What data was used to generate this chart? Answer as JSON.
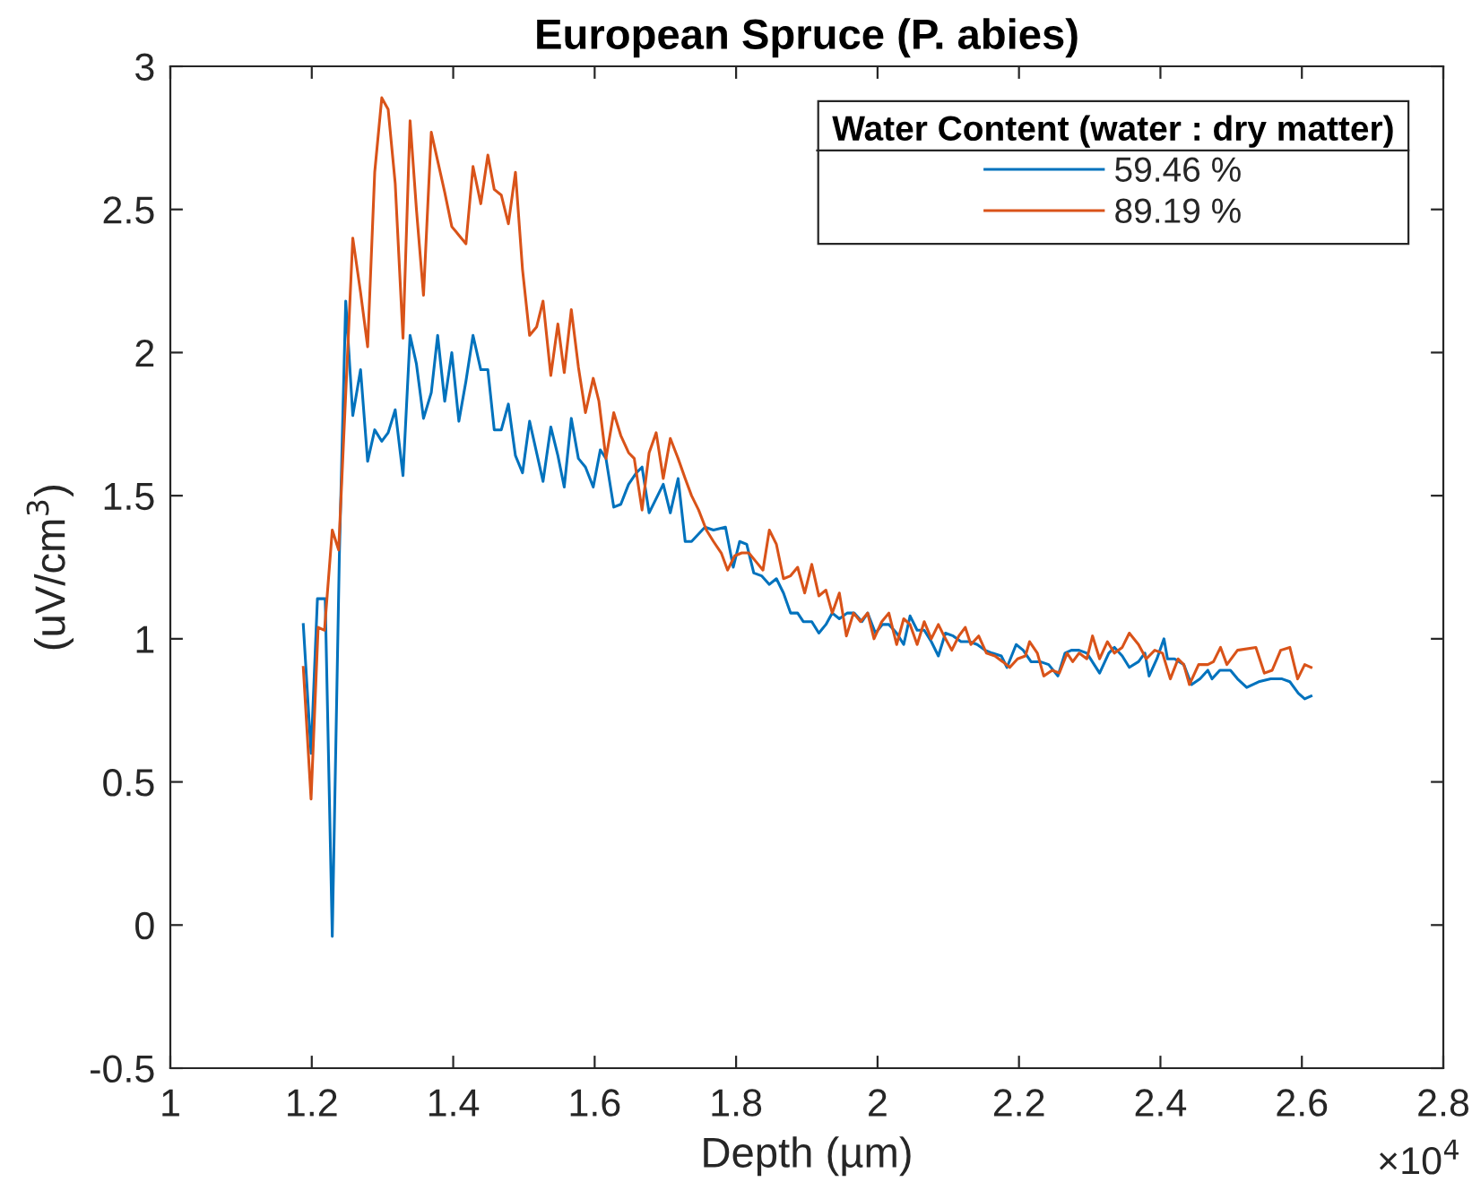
{
  "chart_data": {
    "type": "line",
    "title": "European Spruce (P. abies)",
    "xlabel": "Depth (µm)",
    "ylabel": "(uV/cm$^{3}$)",
    "legend_title": "Water Content (water : dry matter)",
    "legend": "top right",
    "line_style": "solid",
    "annotations": [
      "×10$^{4}$"
    ],
    "xlim": [
      1,
      2.8
    ],
    "xticks": [
      1,
      1.2,
      1.4,
      1.6,
      1.8,
      2,
      2.2,
      2.4,
      2.6,
      2.8
    ],
    "ylim": [
      -0.5,
      3
    ],
    "yticks": [
      -0.5,
      0,
      0.5,
      1,
      1.5,
      2,
      2.5,
      3
    ],
    "series": [
      {
        "name": "59.46 %",
        "color": "#0072bd",
        "x": [
          1.188,
          1.199,
          1.208,
          1.219,
          1.229,
          1.239,
          1.248,
          1.258,
          1.269,
          1.279,
          1.289,
          1.299,
          1.308,
          1.318,
          1.329,
          1.339,
          1.348,
          1.358,
          1.369,
          1.378,
          1.388,
          1.398,
          1.408,
          1.418,
          1.428,
          1.439,
          1.449,
          1.458,
          1.468,
          1.478,
          1.488,
          1.498,
          1.508,
          1.527,
          1.538,
          1.548,
          1.557,
          1.567,
          1.577,
          1.587,
          1.598,
          1.608,
          1.616,
          1.627,
          1.637,
          1.648,
          1.659,
          1.667,
          1.677,
          1.697,
          1.707,
          1.718,
          1.728,
          1.737,
          1.756,
          1.768,
          1.785,
          1.796,
          1.805,
          1.815,
          1.825,
          1.836,
          1.847,
          1.857,
          1.867,
          1.877,
          1.887,
          1.895,
          1.907,
          1.917,
          1.927,
          1.936,
          1.946,
          1.957,
          1.967,
          1.978,
          1.986,
          1.997,
          2.007,
          2.016,
          2.027,
          2.037,
          2.046,
          2.056,
          2.066,
          2.076,
          2.086,
          2.096,
          2.107,
          2.118,
          2.13,
          2.141,
          2.152,
          2.162,
          2.175,
          2.183,
          2.196,
          2.206,
          2.217,
          2.23,
          2.242,
          2.255,
          2.265,
          2.274,
          2.285,
          2.296,
          2.314,
          2.327,
          2.335,
          2.346,
          2.356,
          2.369,
          2.378,
          2.384,
          2.395,
          2.405,
          2.41,
          2.42,
          2.433,
          2.444,
          2.456,
          2.467,
          2.473,
          2.484,
          2.499,
          2.509,
          2.522,
          2.539,
          2.556,
          2.572,
          2.583,
          2.595,
          2.604,
          2.613
        ],
        "values": [
          1.05,
          0.6,
          1.14,
          1.14,
          -0.04,
          1.29,
          2.18,
          1.78,
          1.94,
          1.62,
          1.73,
          1.69,
          1.72,
          1.8,
          1.57,
          2.06,
          1.96,
          1.77,
          1.86,
          2.06,
          1.83,
          2.0,
          1.76,
          1.9,
          2.06,
          1.94,
          1.94,
          1.73,
          1.73,
          1.82,
          1.64,
          1.58,
          1.76,
          1.55,
          1.74,
          1.64,
          1.53,
          1.77,
          1.63,
          1.6,
          1.53,
          1.66,
          1.63,
          1.46,
          1.47,
          1.54,
          1.58,
          1.6,
          1.44,
          1.54,
          1.44,
          1.56,
          1.34,
          1.34,
          1.39,
          1.38,
          1.39,
          1.25,
          1.34,
          1.33,
          1.23,
          1.22,
          1.19,
          1.21,
          1.16,
          1.09,
          1.09,
          1.06,
          1.06,
          1.02,
          1.05,
          1.09,
          1.07,
          1.09,
          1.09,
          1.06,
          1.09,
          1.02,
          1.05,
          1.05,
          1.02,
          0.98,
          1.08,
          1.03,
          1.03,
          0.99,
          0.94,
          1.02,
          1.01,
          0.99,
          0.99,
          0.98,
          0.96,
          0.95,
          0.94,
          0.9,
          0.98,
          0.96,
          0.92,
          0.92,
          0.91,
          0.87,
          0.95,
          0.96,
          0.96,
          0.95,
          0.88,
          0.95,
          0.97,
          0.94,
          0.9,
          0.92,
          0.95,
          0.87,
          0.93,
          1.0,
          0.93,
          0.93,
          0.91,
          0.84,
          0.86,
          0.89,
          0.86,
          0.89,
          0.89,
          0.86,
          0.83,
          0.85,
          0.86,
          0.86,
          0.85,
          0.81,
          0.79,
          0.8
        ]
      },
      {
        "name": "89.19 %",
        "color": "#d95319",
        "x": [
          1.188,
          1.199,
          1.209,
          1.218,
          1.229,
          1.238,
          1.258,
          1.269,
          1.279,
          1.289,
          1.299,
          1.308,
          1.318,
          1.329,
          1.339,
          1.348,
          1.358,
          1.369,
          1.378,
          1.388,
          1.398,
          1.408,
          1.418,
          1.428,
          1.439,
          1.449,
          1.458,
          1.468,
          1.478,
          1.488,
          1.498,
          1.508,
          1.518,
          1.527,
          1.538,
          1.548,
          1.557,
          1.567,
          1.577,
          1.587,
          1.598,
          1.606,
          1.616,
          1.627,
          1.637,
          1.648,
          1.656,
          1.667,
          1.677,
          1.687,
          1.697,
          1.707,
          1.718,
          1.728,
          1.737,
          1.747,
          1.758,
          1.768,
          1.779,
          1.788,
          1.798,
          1.808,
          1.818,
          1.828,
          1.838,
          1.847,
          1.857,
          1.867,
          1.877,
          1.887,
          1.897,
          1.907,
          1.917,
          1.927,
          1.936,
          1.946,
          1.956,
          1.966,
          1.976,
          1.986,
          1.995,
          2.006,
          2.016,
          2.027,
          2.037,
          2.046,
          2.056,
          2.066,
          2.076,
          2.086,
          2.094,
          2.105,
          2.115,
          2.124,
          2.132,
          2.143,
          2.154,
          2.166,
          2.177,
          2.187,
          2.198,
          2.209,
          2.215,
          2.226,
          2.235,
          2.247,
          2.257,
          2.268,
          2.276,
          2.285,
          2.296,
          2.304,
          2.314,
          2.325,
          2.335,
          2.346,
          2.356,
          2.369,
          2.38,
          2.392,
          2.403,
          2.414,
          2.425,
          2.433,
          2.441,
          2.454,
          2.467,
          2.475,
          2.485,
          2.494,
          2.509,
          2.535,
          2.547,
          2.558,
          2.57,
          2.583,
          2.594,
          2.604,
          2.613
        ],
        "values": [
          0.9,
          0.44,
          1.04,
          1.03,
          1.38,
          1.31,
          2.4,
          2.21,
          2.02,
          2.63,
          2.89,
          2.85,
          2.59,
          2.05,
          2.81,
          2.5,
          2.2,
          2.77,
          2.67,
          2.56,
          2.44,
          2.41,
          2.38,
          2.65,
          2.52,
          2.69,
          2.57,
          2.55,
          2.45,
          2.63,
          2.29,
          2.06,
          2.09,
          2.18,
          1.92,
          2.1,
          1.93,
          2.15,
          1.95,
          1.79,
          1.91,
          1.83,
          1.63,
          1.79,
          1.71,
          1.65,
          1.63,
          1.45,
          1.65,
          1.72,
          1.56,
          1.7,
          1.63,
          1.56,
          1.5,
          1.45,
          1.38,
          1.34,
          1.3,
          1.24,
          1.29,
          1.3,
          1.3,
          1.27,
          1.24,
          1.38,
          1.33,
          1.21,
          1.22,
          1.25,
          1.16,
          1.26,
          1.15,
          1.17,
          1.09,
          1.16,
          1.01,
          1.09,
          1.06,
          1.09,
          1.0,
          1.06,
          1.09,
          0.98,
          1.07,
          1.05,
          0.98,
          1.06,
          1.0,
          1.05,
          1.01,
          0.96,
          1.01,
          1.04,
          0.98,
          1.01,
          0.95,
          0.94,
          0.92,
          0.9,
          0.93,
          0.94,
          0.99,
          0.95,
          0.87,
          0.89,
          0.88,
          0.95,
          0.92,
          0.95,
          0.93,
          1.01,
          0.93,
          0.99,
          0.95,
          0.97,
          1.02,
          0.98,
          0.93,
          0.96,
          0.95,
          0.86,
          0.93,
          0.91,
          0.84,
          0.91,
          0.91,
          0.92,
          0.97,
          0.91,
          0.96,
          0.97,
          0.88,
          0.89,
          0.96,
          0.97,
          0.86,
          0.91,
          0.9
        ]
      }
    ]
  }
}
